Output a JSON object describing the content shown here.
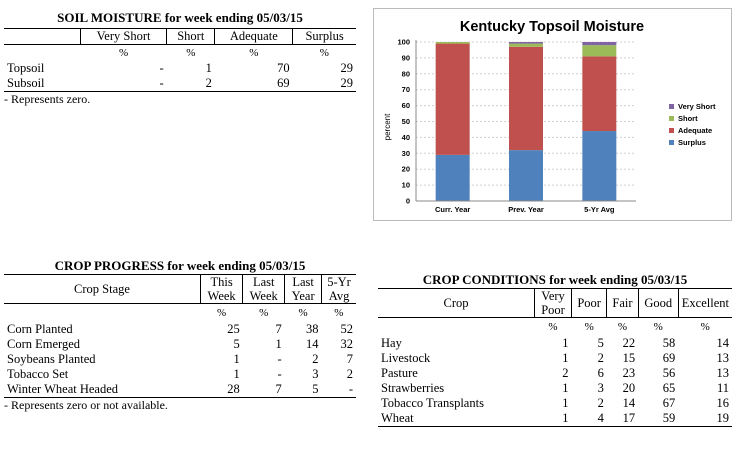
{
  "soil": {
    "title": "SOIL MOISTURE for week ending 05/03/15",
    "columns": [
      "",
      "Very Short",
      "Short",
      "Adequate",
      "Surplus"
    ],
    "units": [
      "",
      "%",
      "%",
      "%",
      "%"
    ],
    "rows": [
      [
        "Topsoil",
        "-",
        "1",
        "70",
        "29"
      ],
      [
        "Subsoil",
        "-",
        "2",
        "69",
        "29"
      ]
    ],
    "note": "- Represents zero."
  },
  "chart_data": {
    "type": "bar",
    "stacked": true,
    "title": "Kentucky Topsoil Moisture",
    "ylabel": "percent",
    "xlabel": "",
    "ylim": [
      0,
      100
    ],
    "yticks": [
      0,
      10,
      20,
      30,
      40,
      50,
      60,
      70,
      80,
      90,
      100
    ],
    "categories": [
      "Curr. Year",
      "Prev. Year",
      "5-Yr Avg"
    ],
    "series": [
      {
        "name": "Surplus",
        "color": "#4f81bd",
        "values": [
          29,
          32,
          44
        ]
      },
      {
        "name": "Adequate",
        "color": "#c0504d",
        "values": [
          70,
          65,
          47
        ]
      },
      {
        "name": "Short",
        "color": "#9bbb59",
        "values": [
          1,
          2,
          7
        ]
      },
      {
        "name": "Very Short",
        "color": "#8064a2",
        "values": [
          0,
          1,
          2
        ]
      }
    ],
    "legend_order": [
      "Very Short",
      "Short",
      "Adequate",
      "Surplus"
    ],
    "legend_position": "right",
    "grid": true
  },
  "progress": {
    "title": "CROP PROGRESS for week ending 05/03/15",
    "columns": [
      "Crop Stage",
      "This Week",
      "Last Week",
      "Last Year",
      "5-Yr Avg"
    ],
    "units": [
      "",
      "%",
      "%",
      "%",
      "%"
    ],
    "rows": [
      [
        "Corn Planted",
        "25",
        "7",
        "38",
        "52"
      ],
      [
        "Corn Emerged",
        "5",
        "1",
        "14",
        "32"
      ],
      [
        "Soybeans Planted",
        "1",
        "-",
        "2",
        "7"
      ],
      [
        "Tobacco Set",
        "1",
        "-",
        "3",
        "2"
      ],
      [
        "Winter Wheat Headed",
        "28",
        "7",
        "5",
        "-"
      ]
    ],
    "note": "- Represents zero or not available."
  },
  "conditions": {
    "title": "CROP CONDITIONS for week ending 05/03/15",
    "columns": [
      "Crop",
      "Very Poor",
      "Poor",
      "Fair",
      "Good",
      "Excellent"
    ],
    "units": [
      "",
      "%",
      "%",
      "%",
      "%",
      "%"
    ],
    "rows": [
      [
        "Hay",
        "1",
        "5",
        "22",
        "58",
        "14"
      ],
      [
        "Livestock",
        "1",
        "2",
        "15",
        "69",
        "13"
      ],
      [
        "Pasture",
        "2",
        "6",
        "23",
        "56",
        "13"
      ],
      [
        "Strawberries",
        "1",
        "3",
        "20",
        "65",
        "11"
      ],
      [
        "Tobacco Transplants",
        "1",
        "2",
        "14",
        "67",
        "16"
      ],
      [
        "Wheat",
        "1",
        "4",
        "17",
        "59",
        "19"
      ]
    ]
  }
}
